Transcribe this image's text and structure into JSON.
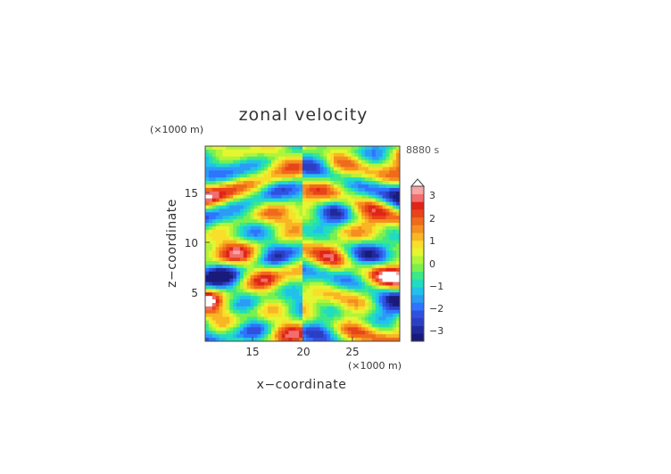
{
  "chart_data": {
    "type": "heatmap",
    "title": "zonal velocity",
    "xlabel": "x−coordinate",
    "ylabel": "z−coordinate",
    "x_unit": "(×1000 m)",
    "y_unit": "(×1000 m)",
    "time_label": "8880 s",
    "xlim": [
      10,
      30
    ],
    "ylim": [
      0,
      20
    ],
    "x_ticks": [
      "15",
      "20",
      "25"
    ],
    "y_ticks": [
      "5",
      "10",
      "15"
    ],
    "colorbar": {
      "levels": [
        -3.5,
        -3.25,
        -3,
        -2.75,
        -2.5,
        -2.25,
        -2,
        -1.75,
        -1.5,
        -1.25,
        -1,
        -0.75,
        -0.5,
        -0.25,
        0,
        0.25,
        0.5,
        0.75,
        1,
        1.25,
        1.5,
        1.75,
        2,
        2.25,
        2.5,
        2.75,
        3,
        3.25,
        3.5
      ],
      "tick_labels": [
        "3",
        "2",
        "1",
        "0",
        "−1",
        "−2",
        "−3"
      ],
      "colors": [
        "#1a1a7a",
        "#1f2a9c",
        "#2a3fc4",
        "#3150e0",
        "#2e74ff",
        "#2b9cf5",
        "#22c1ea",
        "#20dcc0",
        "#3de888",
        "#7af050",
        "#b0f53a",
        "#e4f532",
        "#f9df2a",
        "#f8b624",
        "#f58f1f",
        "#f06a1c",
        "#e8441a",
        "#e02418",
        "#f26e6e",
        "#f7a5a5"
      ],
      "extend": "max"
    },
    "grid": false,
    "legend": "right"
  }
}
